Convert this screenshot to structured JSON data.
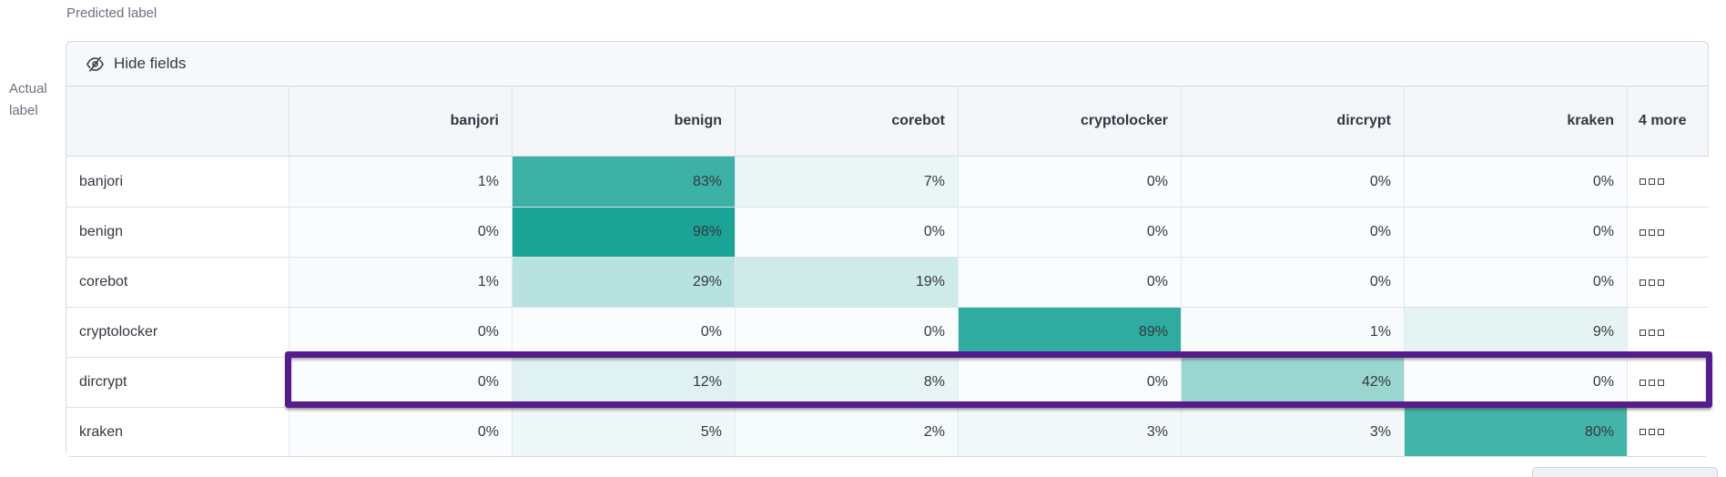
{
  "axes": {
    "predicted_label": "Predicted label",
    "actual_label_lines": [
      "Actual",
      "label"
    ]
  },
  "toolbar": {
    "hide_fields_label": "Hide fields"
  },
  "icons": {
    "toolbar_icon": "eye-closed-icon",
    "hidden_cells_icon": "boxes-horizontal-icon"
  },
  "chart_data": {
    "type": "heatmap",
    "title": "",
    "xlabel": "Predicted label",
    "ylabel": "Actual label",
    "columns": [
      "banjori",
      "benign",
      "corebot",
      "cryptolocker",
      "dircrypt",
      "kraken"
    ],
    "hidden_columns_indicator": "4 more",
    "unit": "%",
    "rows": [
      {
        "label": "banjori",
        "values": [
          1,
          83,
          7,
          0,
          0,
          0
        ]
      },
      {
        "label": "benign",
        "values": [
          0,
          98,
          0,
          0,
          0,
          0
        ]
      },
      {
        "label": "corebot",
        "values": [
          1,
          29,
          19,
          0,
          0,
          0
        ]
      },
      {
        "label": "cryptolocker",
        "values": [
          0,
          0,
          0,
          89,
          1,
          9
        ]
      },
      {
        "label": "dircrypt",
        "values": [
          0,
          12,
          8,
          0,
          42,
          0
        ]
      },
      {
        "label": "kraken",
        "values": [
          0,
          5,
          2,
          3,
          3,
          80
        ]
      }
    ],
    "highlighted_row": "dircrypt",
    "colors": {
      "scale_min": "#FAFCFD",
      "scale_max": "#16A293",
      "highlight_border": "#571C8C",
      "header_bg": "#F4F6F9",
      "toolbar_bg": "#F6F8FB",
      "panel_border": "#D3DAE6",
      "text": "#343741",
      "muted_text": "#69707D"
    }
  }
}
